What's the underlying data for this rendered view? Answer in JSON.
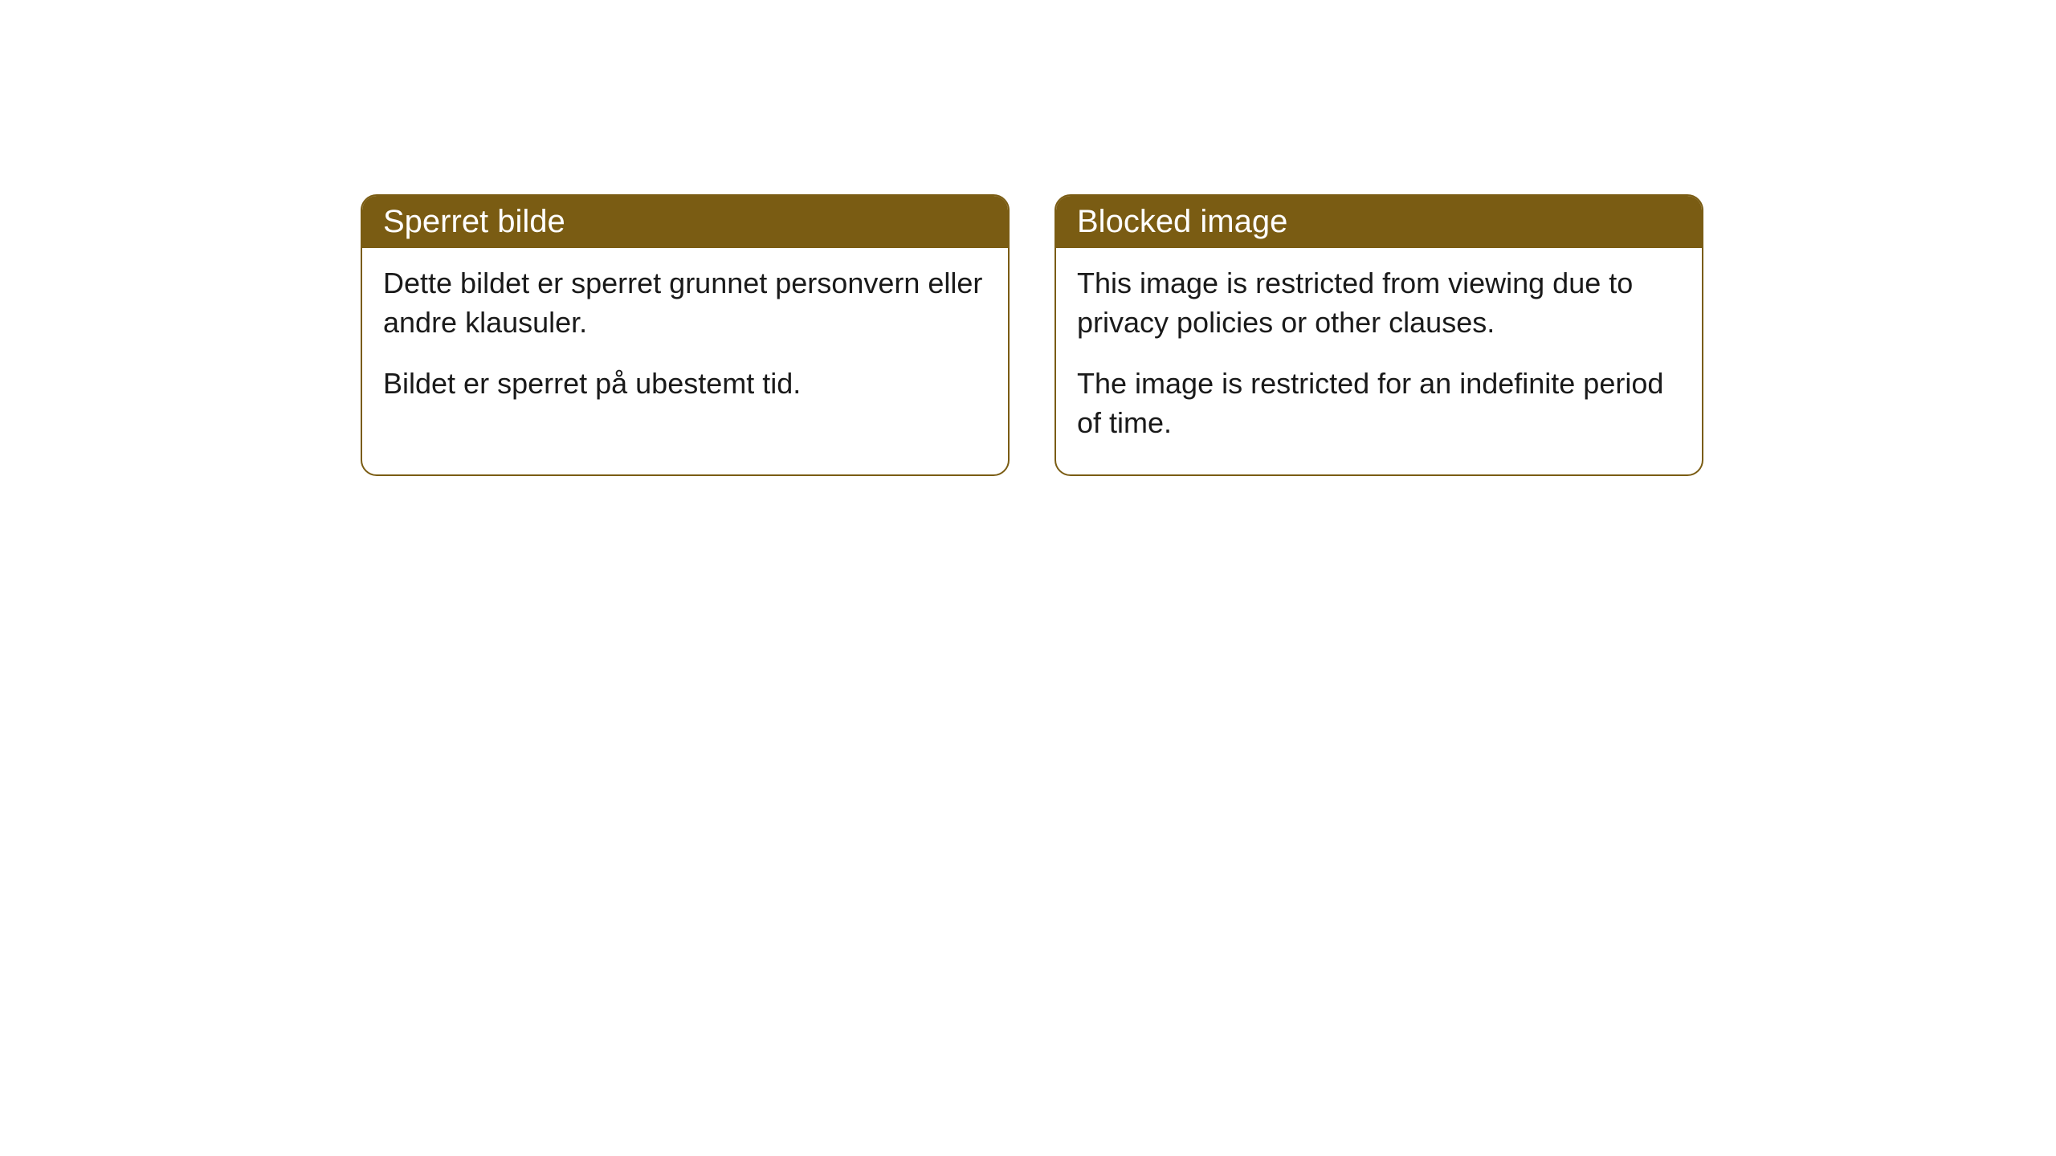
{
  "cards": [
    {
      "title": "Sperret bilde",
      "paragraph1": "Dette bildet er sperret grunnet personvern eller andre klausuler.",
      "paragraph2": "Bildet er sperret på ubestemt tid."
    },
    {
      "title": "Blocked image",
      "paragraph1": "This image is restricted from viewing due to privacy policies or other clauses.",
      "paragraph2": "The image is restricted for an indefinite period of time."
    }
  ],
  "styling": {
    "header_bg": "#7a5c13",
    "header_text_color": "#ffffff",
    "border_color": "#7a5c13",
    "body_bg": "#ffffff",
    "body_text_color": "#1a1a1a",
    "border_radius": 20,
    "header_font_size": 40,
    "body_font_size": 36
  }
}
